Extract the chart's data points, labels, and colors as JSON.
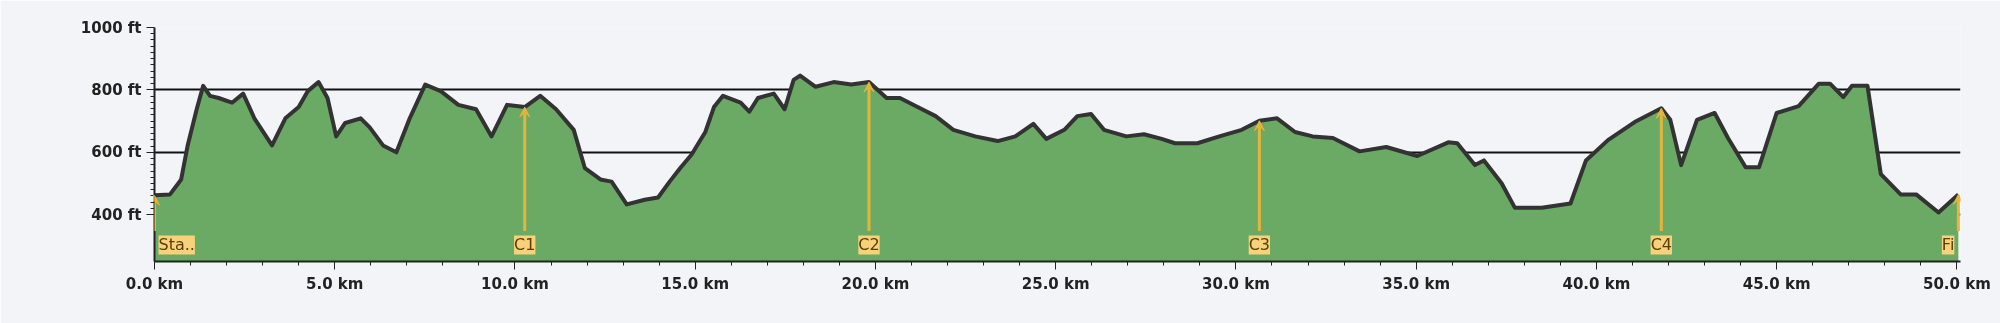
{
  "chart_data": {
    "type": "area",
    "grid": "y",
    "xlim": [
      0,
      50.1
    ],
    "ylim": [
      250,
      1000
    ],
    "xticks": [
      {
        "value": 0,
        "label": "0.0 km"
      },
      {
        "value": 5,
        "label": "5.0 km"
      },
      {
        "value": 10,
        "label": "10.0 km"
      },
      {
        "value": 15,
        "label": "15.0 km"
      },
      {
        "value": 20,
        "label": "20.0 km"
      },
      {
        "value": 25,
        "label": "25.0 km"
      },
      {
        "value": 30,
        "label": "30.0 km"
      },
      {
        "value": 35,
        "label": "35.0 km"
      },
      {
        "value": 40,
        "label": "40.0 km"
      },
      {
        "value": 45,
        "label": "45.0 km"
      },
      {
        "value": 50,
        "label": "50.0 km"
      }
    ],
    "yticks": [
      {
        "value": 400,
        "label": "400 ft"
      },
      {
        "value": 600,
        "label": "600 ft"
      },
      {
        "value": 800,
        "label": "800 ft"
      },
      {
        "value": 1000,
        "label": "1000 ft"
      }
    ],
    "x": [
      0,
      0.43,
      0.74,
      0.92,
      1.17,
      1.35,
      1.54,
      1.78,
      2.15,
      2.46,
      2.77,
      3.26,
      3.63,
      4.0,
      4.25,
      4.55,
      4.8,
      5.04,
      5.29,
      5.72,
      5.97,
      6.34,
      6.71,
      7.08,
      7.51,
      7.94,
      8.43,
      8.92,
      9.35,
      9.78,
      10.27,
      10.7,
      11.14,
      11.63,
      11.94,
      12.37,
      12.68,
      13.1,
      13.6,
      13.97,
      14.29,
      14.58,
      14.9,
      15.28,
      15.52,
      15.77,
      16.26,
      16.5,
      16.74,
      17.18,
      17.48,
      17.73,
      17.91,
      18.34,
      18.84,
      19.33,
      19.82,
      20.31,
      20.68,
      21.17,
      21.67,
      22.16,
      22.77,
      23.39,
      23.88,
      24.38,
      24.74,
      25.24,
      25.6,
      25.98,
      26.34,
      26.96,
      27.45,
      27.94,
      28.31,
      28.93,
      29.54,
      30.16,
      30.65,
      31.14,
      31.64,
      32.13,
      32.69,
      33.43,
      34.17,
      35.03,
      35.89,
      36.14,
      36.63,
      36.88,
      37.37,
      37.74,
      38.48,
      39.28,
      39.71,
      40.32,
      41.06,
      41.8,
      42.05,
      42.35,
      42.79,
      43.28,
      43.65,
      44.14,
      44.51,
      45.0,
      45.61,
      46.17,
      46.48,
      46.85,
      47.09,
      47.52,
      47.89,
      48.44,
      48.87,
      49.49,
      50.04
    ],
    "series": [
      {
        "color": "#6aaa64",
        "values": [
          462,
          465,
          513,
          622,
          738,
          813,
          781,
          774,
          759,
          788,
          709,
          622,
          709,
          745,
          796,
          825,
          774,
          651,
          694,
          709,
          680,
          622,
          600,
          709,
          817,
          796,
          752,
          738,
          651,
          752,
          745,
          781,
          738,
          672,
          549,
          513,
          506,
          433,
          448,
          455,
          506,
          549,
          593,
          665,
          745,
          781,
          759,
          730,
          774,
          788,
          738,
          832,
          846,
          810,
          825,
          817,
          825,
          774,
          774,
          745,
          716,
          672,
          651,
          636,
          651,
          691,
          643,
          672,
          716,
          723,
          672,
          651,
          658,
          643,
          629,
          629,
          651,
          672,
          701,
          709,
          665,
          651,
          646,
          603,
          617,
          588,
          632,
          629,
          559,
          574,
          501,
          422,
          422,
          436,
          574,
          639,
          697,
          741,
          704,
          559,
          704,
          726,
          646,
          552,
          552,
          726,
          748,
          820,
          820,
          777,
          813,
          813,
          530,
          465,
          465,
          407,
          465
        ]
      }
    ],
    "annotations": [
      {
        "text": "Sta..",
        "x": 0,
        "y": 462
      },
      {
        "text": "C1",
        "x": 10.27,
        "y": 745
      },
      {
        "text": "C2",
        "x": 19.82,
        "y": 825
      },
      {
        "text": "C3",
        "x": 30.65,
        "y": 701
      },
      {
        "text": "C4",
        "x": 41.8,
        "y": 741
      },
      {
        "text": "Fi",
        "x": 50.04,
        "y": 465
      }
    ]
  }
}
